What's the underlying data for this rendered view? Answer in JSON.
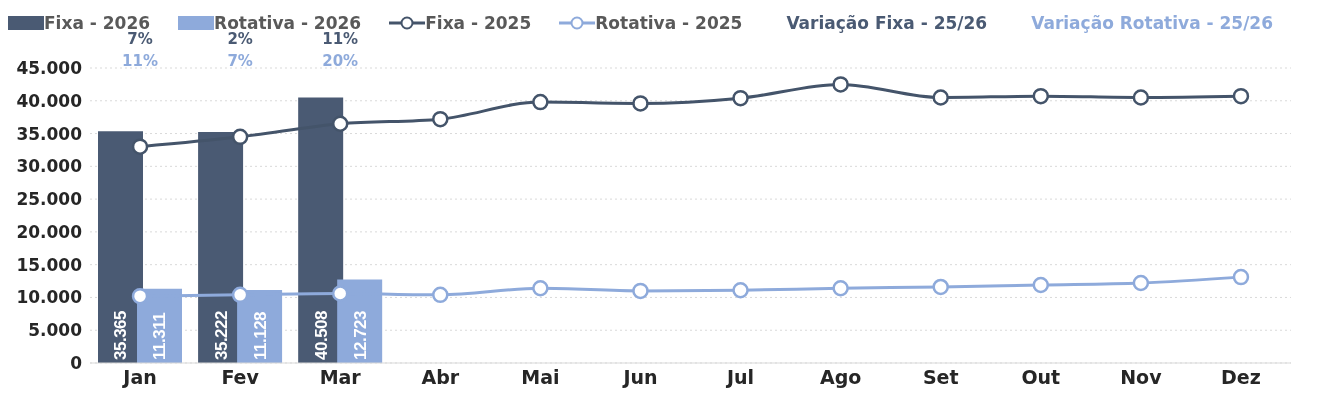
{
  "chart_data": {
    "type": "bar",
    "categories": [
      "Jan",
      "Fev",
      "Mar",
      "Abr",
      "Mai",
      "Jun",
      "Jul",
      "Ago",
      "Set",
      "Out",
      "Nov",
      "Dez"
    ],
    "series": [
      {
        "name": "Fixa - 2026",
        "color": "#4a5a73",
        "values": [
          35365,
          35222,
          40508,
          null,
          null,
          null,
          null,
          null,
          null,
          null,
          null,
          null
        ],
        "value_labels": [
          "35.365",
          "35.222",
          "40.508",
          null,
          null,
          null,
          null,
          null,
          null,
          null,
          null,
          null
        ]
      },
      {
        "name": "Rotativa - 2026",
        "color": "#8eaadb",
        "values": [
          11311,
          11128,
          12723,
          null,
          null,
          null,
          null,
          null,
          null,
          null,
          null,
          null
        ],
        "value_labels": [
          "11.311",
          "11.128",
          "12.723",
          null,
          null,
          null,
          null,
          null,
          null,
          null,
          null,
          null
        ]
      },
      {
        "name": "Fixa - 2025",
        "type": "line",
        "color": "#44546a",
        "values": [
          33000,
          34500,
          36500,
          37200,
          39800,
          39600,
          40400,
          42500,
          40500,
          40700,
          40500,
          40700
        ]
      },
      {
        "name": "Rotativa - 2025",
        "type": "line",
        "color": "#8eaadb",
        "values": [
          10200,
          10400,
          10600,
          10400,
          11400,
          11000,
          11100,
          11400,
          11600,
          11900,
          12200,
          13100
        ]
      }
    ],
    "annotations": [
      "Variação Fixa - 25/26",
      "Variação Rotativa - 25/26",
      "7%",
      "2%",
      "11%",
      "11%",
      "7%",
      "20%"
    ],
    "ylim": [
      0,
      45000
    ],
    "yticks": [
      0,
      {
        "value": 5000,
        "label": "5.000"
      },
      {
        "value": 10000,
        "label": "10.000"
      },
      {
        "value": 15000,
        "label": "15.000"
      },
      {
        "value": 20000,
        "label": "20.000"
      },
      {
        "value": 25000,
        "label": "25.000"
      },
      {
        "value": 30000,
        "label": "30.000"
      },
      {
        "value": 35000,
        "label": "35.000"
      },
      {
        "value": 40000,
        "label": "40.000"
      },
      {
        "value": 45000,
        "label": "45.000"
      }
    ],
    "grid": "y",
    "legend": "top",
    "marker": "circle",
    "line_style": "solid"
  }
}
